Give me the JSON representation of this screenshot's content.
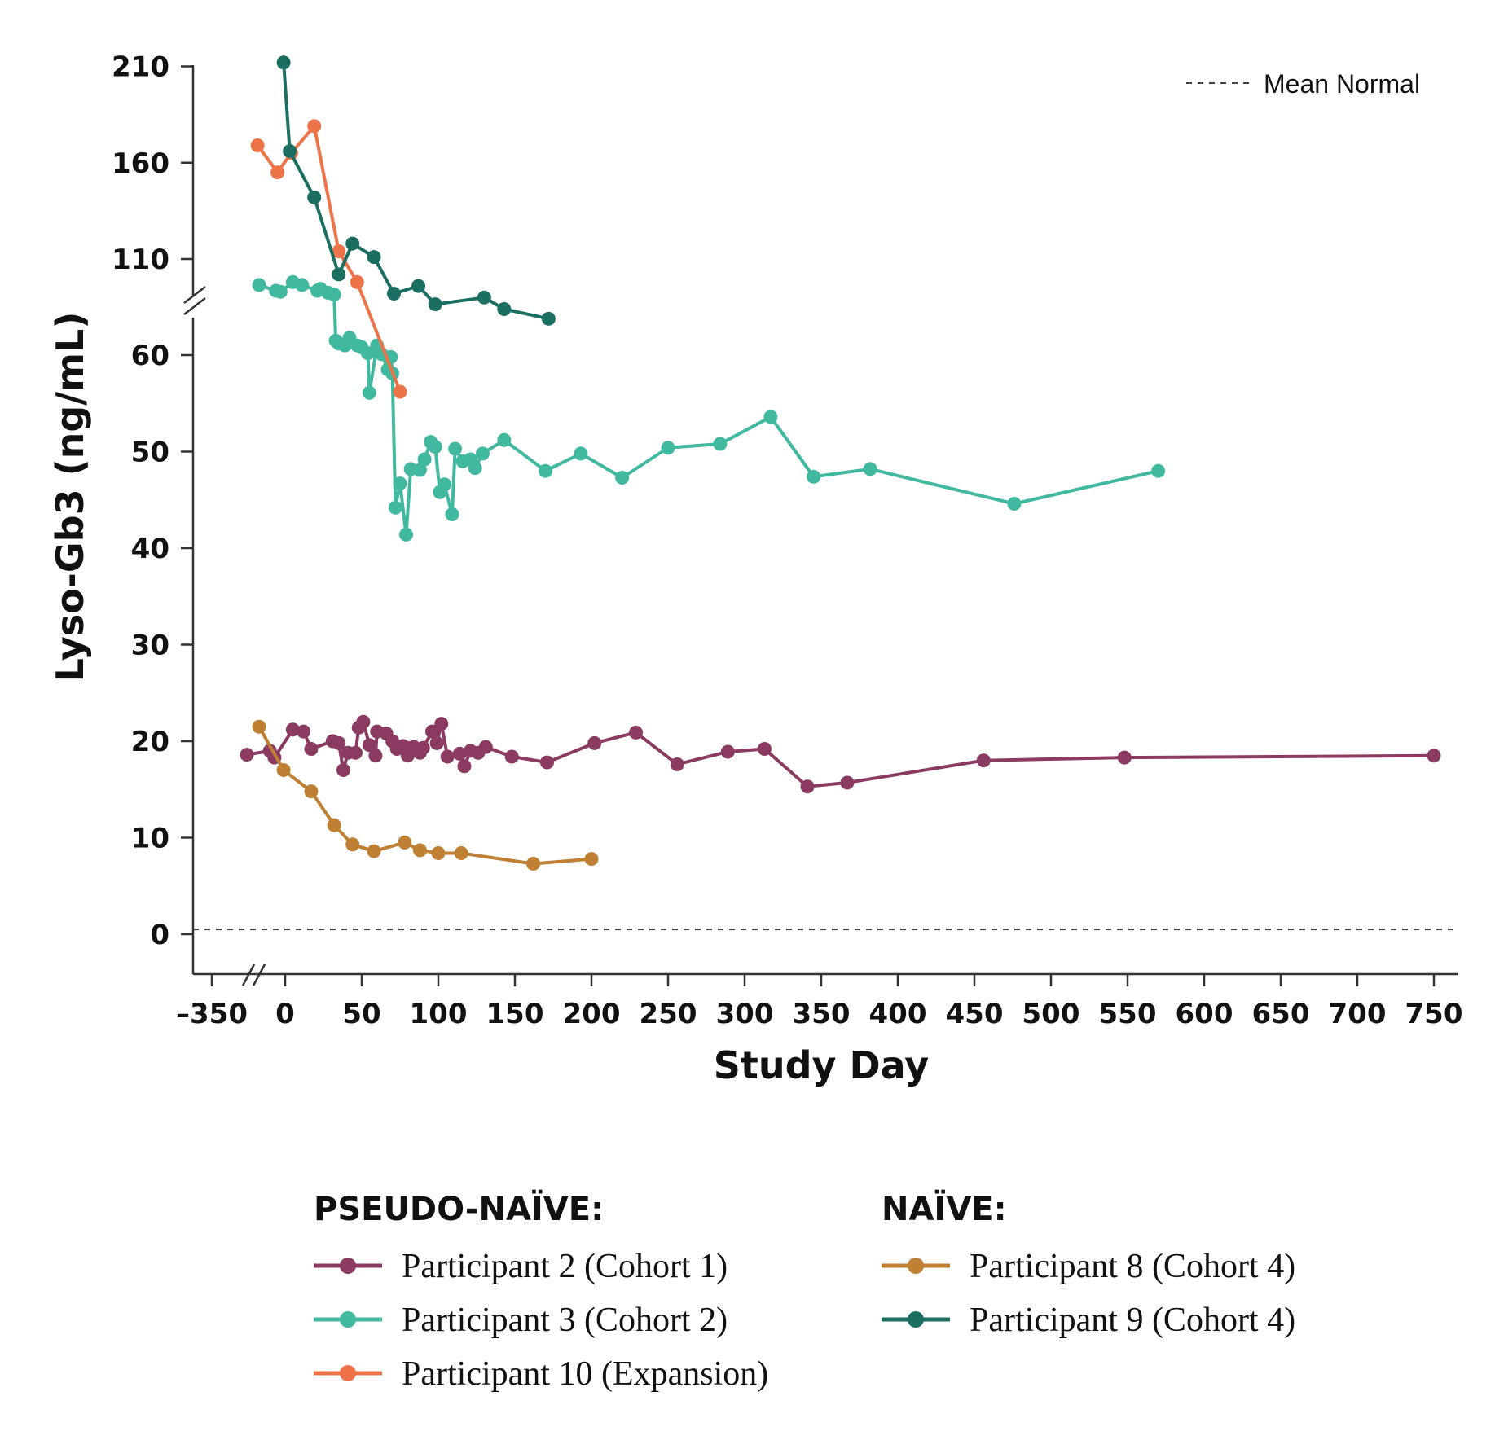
{
  "chart_data": {
    "type": "line",
    "title": "",
    "xlabel": "Study Day",
    "ylabel": "Lyso-Gb3 (ng/mL)",
    "x_ticks": [
      "–350",
      "0",
      "50",
      "100",
      "150",
      "200",
      "250",
      "300",
      "350",
      "400",
      "450",
      "500",
      "550",
      "600",
      "650",
      "700",
      "750"
    ],
    "y_ticks_lower": [
      "0",
      "10",
      "20",
      "30",
      "40",
      "50",
      "60"
    ],
    "y_ticks_upper": [
      "110",
      "160",
      "210"
    ],
    "xlim": [
      -30,
      765
    ],
    "ylim_lower": [
      -5,
      66
    ],
    "ylim_upper": [
      96,
      212
    ],
    "axis_breaks": {
      "x": "between -350 and 0",
      "y": "between 60 and 110"
    },
    "mean_normal": 0.5,
    "mean_normal_label": "Mean Normal",
    "legend_placement": "bottom",
    "legend_groups": [
      {
        "heading": "PSEUDO-NAÏVE:",
        "series_indices": [
          0,
          1,
          2
        ]
      },
      {
        "heading": "NAÏVE:",
        "series_indices": [
          3,
          4
        ]
      }
    ],
    "series": [
      {
        "name": "Participant 2 (Cohort 1)",
        "color": "#8b3a62",
        "points": [
          [
            -25,
            18.6
          ],
          [
            -10,
            19
          ],
          [
            -7,
            18.3
          ],
          [
            5,
            21.2
          ],
          [
            12,
            21
          ],
          [
            17,
            19.2
          ],
          [
            31,
            20
          ],
          [
            35,
            19.8
          ],
          [
            38,
            17
          ],
          [
            41,
            18.8
          ],
          [
            46,
            18.8
          ],
          [
            48,
            21.4
          ],
          [
            51,
            22
          ],
          [
            55,
            19.6
          ],
          [
            59,
            18.5
          ],
          [
            60,
            21
          ],
          [
            66,
            20.8
          ],
          [
            70,
            20
          ],
          [
            73,
            19.2
          ],
          [
            77,
            19.5
          ],
          [
            80,
            18.5
          ],
          [
            82,
            19.3
          ],
          [
            84,
            19.4
          ],
          [
            88,
            18.8
          ],
          [
            90,
            19.3
          ],
          [
            96,
            21
          ],
          [
            99,
            19.8
          ],
          [
            102,
            21.8
          ],
          [
            106,
            18.4
          ],
          [
            114,
            18.7
          ],
          [
            117,
            17.4
          ],
          [
            121,
            19
          ],
          [
            126,
            18.8
          ],
          [
            131,
            19.4
          ],
          [
            148,
            18.4
          ],
          [
            171,
            17.8
          ],
          [
            202,
            19.8
          ],
          [
            229,
            20.9
          ],
          [
            256,
            17.6
          ],
          [
            289,
            18.9
          ],
          [
            313,
            19.2
          ],
          [
            341,
            15.3
          ],
          [
            367,
            15.7
          ],
          [
            456,
            18
          ],
          [
            548,
            18.3
          ],
          [
            750,
            18.5
          ]
        ]
      },
      {
        "name": "Participant 3 (Cohort 2)",
        "color": "#41b8a0",
        "points": [
          [
            -17,
            96.5
          ],
          [
            -6,
            93.5
          ],
          [
            -3,
            93
          ],
          [
            5,
            98
          ],
          [
            11,
            96.5
          ],
          [
            21,
            93.5
          ],
          [
            23,
            94.5
          ],
          [
            28,
            92.5
          ],
          [
            32,
            91.5
          ],
          [
            33,
            61.5
          ],
          [
            35,
            61.2
          ],
          [
            39,
            61
          ],
          [
            42,
            61.8
          ],
          [
            47,
            61
          ],
          [
            50,
            60.8
          ],
          [
            54,
            60.2
          ],
          [
            55,
            56.1
          ],
          [
            60,
            61
          ],
          [
            63,
            60.1
          ],
          [
            67,
            58.5
          ],
          [
            69,
            59.8
          ],
          [
            70,
            58.1
          ],
          [
            72,
            44.2
          ],
          [
            75,
            46.7
          ],
          [
            79,
            41.4
          ],
          [
            82,
            48.2
          ],
          [
            88,
            48.1
          ],
          [
            91,
            49.2
          ],
          [
            95,
            51
          ],
          [
            98,
            50.5
          ],
          [
            101,
            45.8
          ],
          [
            104,
            46.6
          ],
          [
            109,
            43.5
          ],
          [
            111,
            50.3
          ],
          [
            116,
            49
          ],
          [
            121,
            49.2
          ],
          [
            124,
            48.3
          ],
          [
            129,
            49.8
          ],
          [
            143,
            51.2
          ],
          [
            170,
            48
          ],
          [
            193,
            49.8
          ],
          [
            220,
            47.3
          ],
          [
            250,
            50.4
          ],
          [
            284,
            50.8
          ],
          [
            317,
            53.6
          ],
          [
            345,
            47.4
          ],
          [
            382,
            48.2
          ],
          [
            476,
            44.6
          ],
          [
            570,
            48
          ]
        ]
      },
      {
        "name": "Participant 10 (Expansion)",
        "color": "#ec7448",
        "points": [
          [
            -18,
            169
          ],
          [
            -5,
            155
          ],
          [
            4,
            165
          ],
          [
            19,
            179
          ],
          [
            35,
            114
          ],
          [
            47,
            98
          ],
          [
            75,
            56.2
          ]
        ]
      },
      {
        "name": "Participant 8 (Cohort 4)",
        "color": "#c08034",
        "points": [
          [
            -17,
            21.5
          ],
          [
            -1,
            17
          ],
          [
            17,
            14.8
          ],
          [
            32,
            11.3
          ],
          [
            44,
            9.3
          ],
          [
            58,
            8.6
          ],
          [
            78,
            9.5
          ],
          [
            88,
            8.7
          ],
          [
            100,
            8.4
          ],
          [
            115,
            8.4
          ],
          [
            162,
            7.3
          ],
          [
            200,
            7.8
          ]
        ]
      },
      {
        "name": "Participant 9 (Cohort 4)",
        "color": "#1b6e62",
        "points": [
          [
            -1,
            212
          ],
          [
            3,
            166
          ],
          [
            19,
            142
          ],
          [
            35,
            102
          ],
          [
            44,
            118
          ],
          [
            58,
            111
          ],
          [
            71,
            92
          ],
          [
            87,
            96
          ],
          [
            98,
            86.5
          ],
          [
            130,
            90
          ],
          [
            143,
            84
          ],
          [
            172,
            79
          ]
        ]
      }
    ]
  }
}
